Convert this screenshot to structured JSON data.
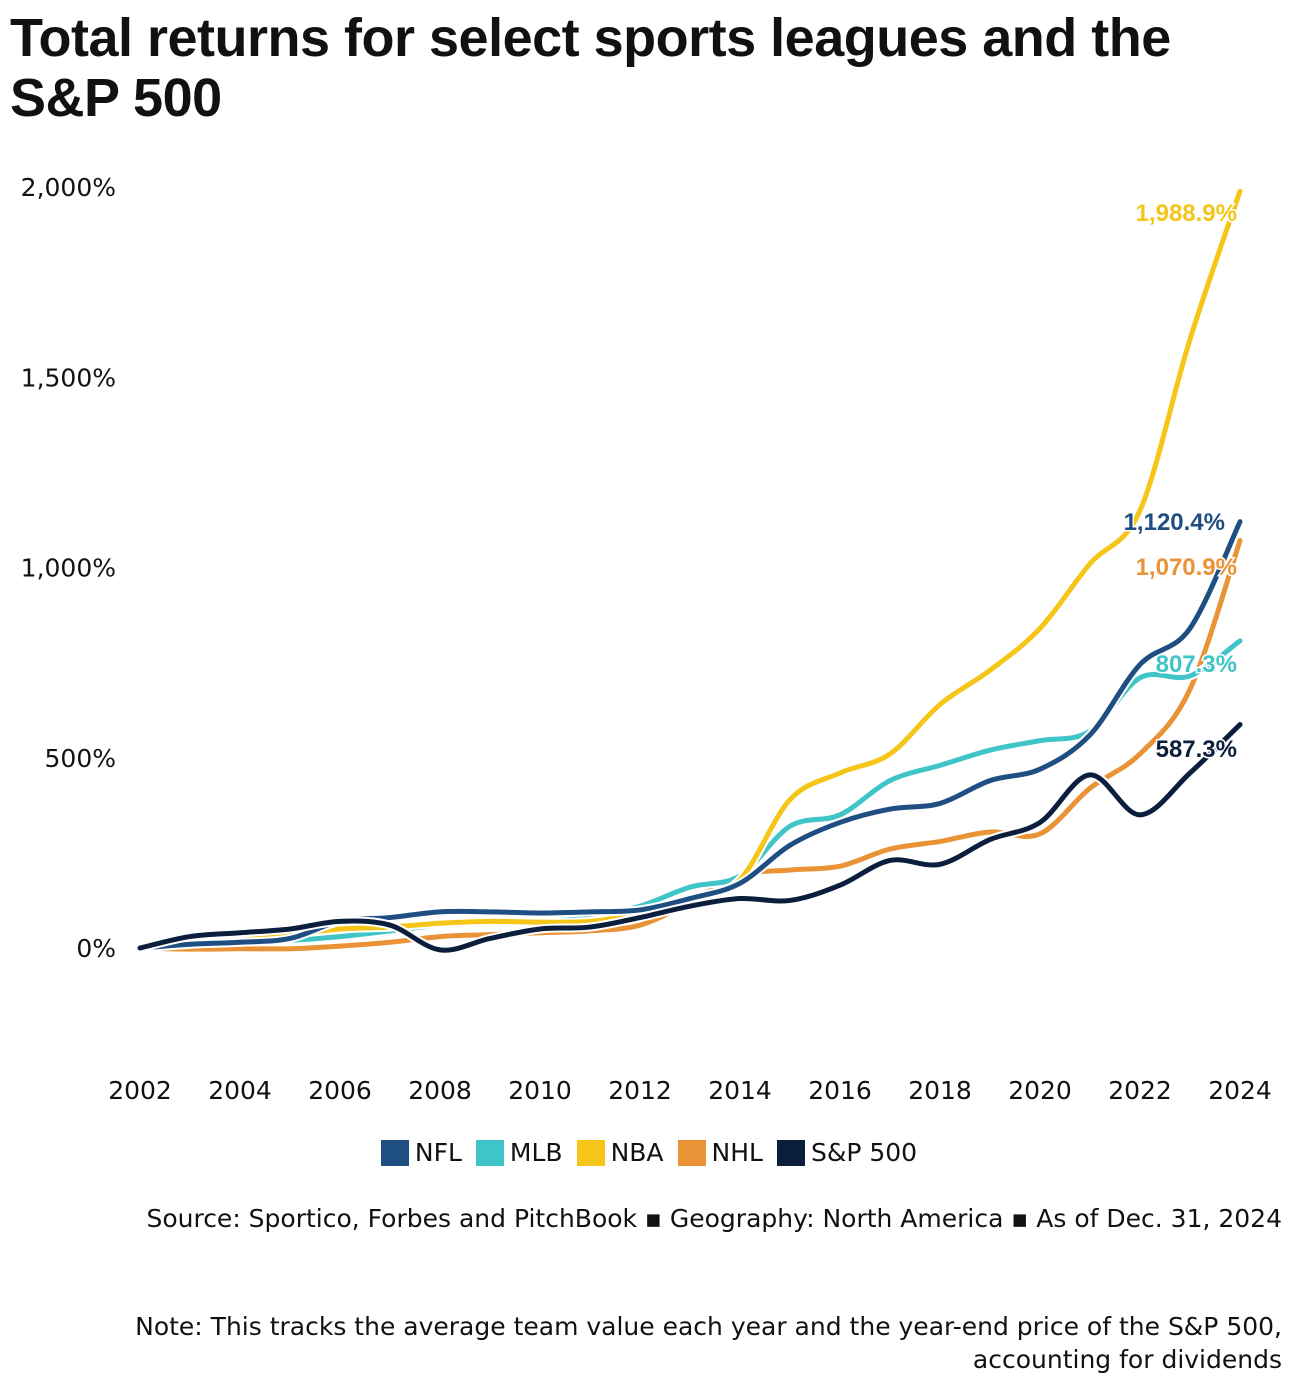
{
  "chart_data": {
    "type": "line",
    "title": "Total returns for select sports leagues and the S&P 500",
    "xlabel": "",
    "ylabel": "",
    "x": [
      2002,
      2003,
      2004,
      2005,
      2006,
      2007,
      2008,
      2009,
      2010,
      2011,
      2012,
      2013,
      2014,
      2015,
      2016,
      2017,
      2018,
      2019,
      2020,
      2021,
      2022,
      2023,
      2024
    ],
    "xticks": [
      "2002",
      "2004",
      "2006",
      "2008",
      "2010",
      "2012",
      "2014",
      "2016",
      "2018",
      "2020",
      "2022",
      "2024"
    ],
    "yticks": [
      0,
      500,
      1000,
      1500,
      2000
    ],
    "ytick_labels": [
      "0%",
      "500%",
      "1,000%",
      "1,500%",
      "2,000%"
    ],
    "ylim": [
      0,
      2000
    ],
    "grid": false,
    "legend_placement": "bottom",
    "series": [
      {
        "name": "NFL",
        "color": "#1f4e82",
        "end_label": "1,120.4%",
        "values": [
          0,
          10,
          15,
          25,
          70,
          80,
          95,
          95,
          92,
          95,
          100,
          130,
          170,
          270,
          330,
          365,
          380,
          440,
          470,
          560,
          745,
          840,
          1120.4
        ]
      },
      {
        "name": "MLB",
        "color": "#3fc4c8",
        "end_label": "807.3%",
        "values": [
          0,
          10,
          15,
          20,
          30,
          45,
          60,
          65,
          70,
          80,
          110,
          160,
          190,
          320,
          350,
          440,
          480,
          520,
          545,
          570,
          710,
          715,
          807.3
        ]
      },
      {
        "name": "NBA",
        "color": "#f5c518",
        "end_label": "1,988.9%",
        "values": [
          0,
          15,
          20,
          35,
          50,
          55,
          65,
          70,
          68,
          70,
          90,
          120,
          180,
          390,
          460,
          510,
          640,
          730,
          840,
          1010,
          1150,
          1600,
          1988.9
        ]
      },
      {
        "name": "NHL",
        "color": "#ea9236",
        "end_label": "1,070.9%",
        "values": [
          0,
          -3,
          -2,
          -2,
          5,
          15,
          30,
          35,
          40,
          45,
          60,
          120,
          190,
          205,
          215,
          260,
          280,
          305,
          300,
          420,
          510,
          680,
          1070.9
        ]
      },
      {
        "name": "S&P 500",
        "color": "#0b1f3d",
        "end_label": "587.3%",
        "values": [
          0,
          30,
          40,
          50,
          70,
          60,
          -5,
          25,
          50,
          55,
          80,
          110,
          130,
          125,
          165,
          230,
          220,
          285,
          330,
          455,
          350,
          460,
          587.3
        ]
      }
    ]
  },
  "source": "Source: Sportico, Forbes and PitchBook ▪ Geography: North America ▪ As of Dec. 31, 2024",
  "note": "Note: This tracks the average team value each year and the year-end price of the S&P 500, accounting for dividends"
}
